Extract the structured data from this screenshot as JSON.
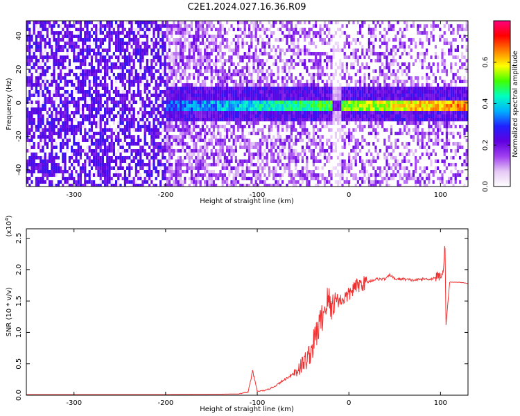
{
  "title": "C2E1.2024.027.16.36.R09",
  "chart_data": [
    {
      "type": "heatmap",
      "xlabel": "Height of straight line (km)",
      "ylabel": "Frequency (Hz)",
      "xlim": [
        -352,
        130
      ],
      "ylim": [
        -50,
        49
      ],
      "xticks": [
        -300,
        -200,
        -100,
        0,
        100
      ],
      "yticks": [
        -40,
        -20,
        0,
        20,
        40
      ],
      "colorbar": {
        "label": "Normalized spectral amplitude",
        "range": [
          0,
          0.8
        ],
        "ticks": [
          "0.0",
          "0.2",
          "0.4",
          "0.6"
        ],
        "colors": [
          "#ffffff",
          "#e6c8f5",
          "#a040f0",
          "#6000e0",
          "#2020ff",
          "#00b0ff",
          "#00ffc0",
          "#40ff00",
          "#ffff00",
          "#ff8000",
          "#ff0000",
          "#ff0080"
        ]
      },
      "description_values": {
        "noise_dominated_region": [
          -352,
          -200
        ],
        "signal_band_center_hz": 0,
        "signal_band_halfwidth_hz": 3
      }
    },
    {
      "type": "line",
      "xlabel": "Height of straight line (km)",
      "ylabel": "SNR (10 * v/v)",
      "yscale_label": "(x10",
      "yscale_exp": "4",
      "yscale_close": ")",
      "xlim": [
        -352,
        130
      ],
      "ylim": [
        0,
        2.65
      ],
      "xticks": [
        -300,
        -200,
        -100,
        0,
        100
      ],
      "yticks": [
        "0.0",
        "0.5",
        "1.0",
        "1.5",
        "2.0",
        "2.5"
      ],
      "color": "#f03030",
      "series": [
        {
          "x": [
            -352,
            -300,
            -250,
            -200,
            -150,
            -120,
            -110,
            -105,
            -100,
            -90,
            -80,
            -70,
            -60,
            -50,
            -45,
            -40,
            -35,
            -30,
            -25,
            -22,
            -20,
            -18,
            -15,
            -10,
            -5,
            0,
            5,
            10,
            20,
            30,
            40,
            45,
            50,
            60,
            70,
            80,
            90,
            95,
            100,
            103,
            105,
            106,
            110,
            120,
            130
          ],
          "y": [
            0.01,
            0.01,
            0.01,
            0.01,
            0.015,
            0.02,
            0.05,
            0.38,
            0.06,
            0.08,
            0.15,
            0.25,
            0.35,
            0.5,
            0.6,
            0.75,
            1.0,
            1.2,
            1.45,
            1.55,
            1.35,
            1.45,
            1.55,
            1.5,
            1.55,
            1.6,
            1.7,
            1.75,
            1.8,
            1.85,
            1.85,
            1.92,
            1.85,
            1.85,
            1.83,
            1.85,
            1.85,
            1.88,
            1.9,
            2.0,
            2.4,
            1.12,
            1.8,
            1.8,
            1.78
          ]
        }
      ]
    }
  ]
}
